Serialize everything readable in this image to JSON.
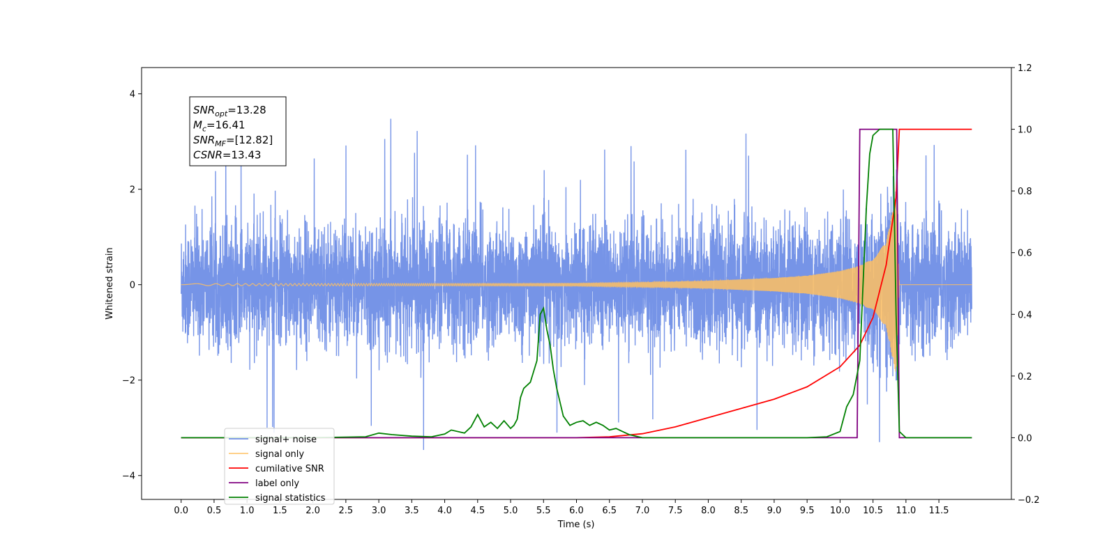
{
  "chart_data": {
    "type": "line",
    "xlabel": "Time (s)",
    "ylabel": "Whitened strain",
    "xlim": [
      -0.6,
      12.6
    ],
    "ylim": [
      -4.5,
      4.55
    ],
    "y2lim": [
      -0.2,
      1.2
    ],
    "xticks": [
      "0.0",
      "0.5",
      "1.0",
      "1.5",
      "2.0",
      "2.5",
      "3.0",
      "3.5",
      "4.0",
      "4.5",
      "5.0",
      "5.5",
      "6.0",
      "6.5",
      "7.0",
      "7.5",
      "8.0",
      "8.5",
      "9.0",
      "9.5",
      "10.0",
      "10.5",
      "11.0",
      "11.5"
    ],
    "yticks": [
      4,
      2,
      0,
      -2,
      -4
    ],
    "yticklabels": [
      "4",
      "2",
      "0",
      "−2",
      "−4"
    ],
    "y2ticks": [
      "1.2",
      "1.0",
      "0.8",
      "0.6",
      "0.4",
      "0.2",
      "0.0",
      "−0.2"
    ],
    "legend_position": "lower-left",
    "stats": [
      {
        "name": "SNR",
        "sub": "opt",
        "value": "=13.28"
      },
      {
        "name": "M",
        "sub": "c",
        "value": "=16.41"
      },
      {
        "name": "SNR",
        "sub": "MF",
        "value": "=[12.82]"
      },
      {
        "name": "CSNR",
        "sub": "",
        "value": "=13.43"
      }
    ],
    "series": [
      {
        "name": "signal+ noise",
        "color": "#6f8ee6",
        "axis": "left",
        "note": "noise band approx ±1.7, spikes to ±3"
      },
      {
        "name": "signal only",
        "color": "#ffbf60",
        "axis": "left",
        "envelope": {
          "x": [
            0.0,
            6.0,
            7.0,
            8.0,
            9.0,
            9.5,
            10.0,
            10.3,
            10.5,
            10.7,
            10.85,
            10.9
          ],
          "amp": [
            0.02,
            0.03,
            0.05,
            0.08,
            0.14,
            0.19,
            0.29,
            0.4,
            0.55,
            0.9,
            1.9,
            0.0
          ]
        }
      },
      {
        "name": "cumilative SNR",
        "color": "#ff0000",
        "axis": "right",
        "x": [
          0.0,
          6.0,
          6.5,
          7.0,
          7.5,
          8.0,
          8.5,
          9.0,
          9.5,
          10.0,
          10.3,
          10.5,
          10.7,
          10.85,
          10.9,
          12.0
        ],
        "y": [
          0.0,
          0.0,
          0.003,
          0.013,
          0.035,
          0.065,
          0.095,
          0.125,
          0.165,
          0.23,
          0.3,
          0.39,
          0.56,
          0.78,
          1.0,
          1.0
        ]
      },
      {
        "name": "label only",
        "color": "#800080",
        "axis": "right",
        "x": [
          0.0,
          10.26,
          10.3,
          10.86,
          10.9,
          12.0
        ],
        "y": [
          0.0,
          0.0,
          1.0,
          1.0,
          0.0,
          0.0
        ]
      },
      {
        "name": "signal statistics",
        "color": "#008000",
        "axis": "right",
        "x": [
          0.0,
          2.0,
          2.8,
          3.0,
          3.2,
          3.5,
          3.8,
          4.0,
          4.1,
          4.3,
          4.4,
          4.5,
          4.6,
          4.7,
          4.8,
          4.9,
          5.0,
          5.05,
          5.1,
          5.15,
          5.2,
          5.3,
          5.4,
          5.45,
          5.5,
          5.55,
          5.6,
          5.65,
          5.7,
          5.8,
          5.9,
          6.0,
          6.1,
          6.2,
          6.3,
          6.4,
          6.5,
          6.6,
          6.7,
          6.8,
          6.9,
          7.0,
          7.2,
          9.5,
          9.8,
          10.0,
          10.1,
          10.2,
          10.3,
          10.35,
          10.4,
          10.45,
          10.5,
          10.6,
          10.7,
          10.8,
          10.85,
          10.9,
          11.0,
          12.0
        ],
        "y": [
          0.0,
          0.0,
          0.003,
          0.015,
          0.01,
          0.005,
          0.003,
          0.012,
          0.025,
          0.015,
          0.035,
          0.075,
          0.035,
          0.05,
          0.03,
          0.055,
          0.03,
          0.04,
          0.06,
          0.13,
          0.16,
          0.18,
          0.25,
          0.4,
          0.42,
          0.35,
          0.3,
          0.22,
          0.16,
          0.07,
          0.04,
          0.05,
          0.055,
          0.04,
          0.05,
          0.04,
          0.025,
          0.03,
          0.02,
          0.01,
          0.005,
          0.0,
          0.0,
          0.0,
          0.003,
          0.02,
          0.1,
          0.14,
          0.25,
          0.5,
          0.75,
          0.92,
          0.98,
          1.0,
          1.0,
          1.0,
          0.4,
          0.02,
          0.0,
          0.0
        ]
      }
    ]
  }
}
